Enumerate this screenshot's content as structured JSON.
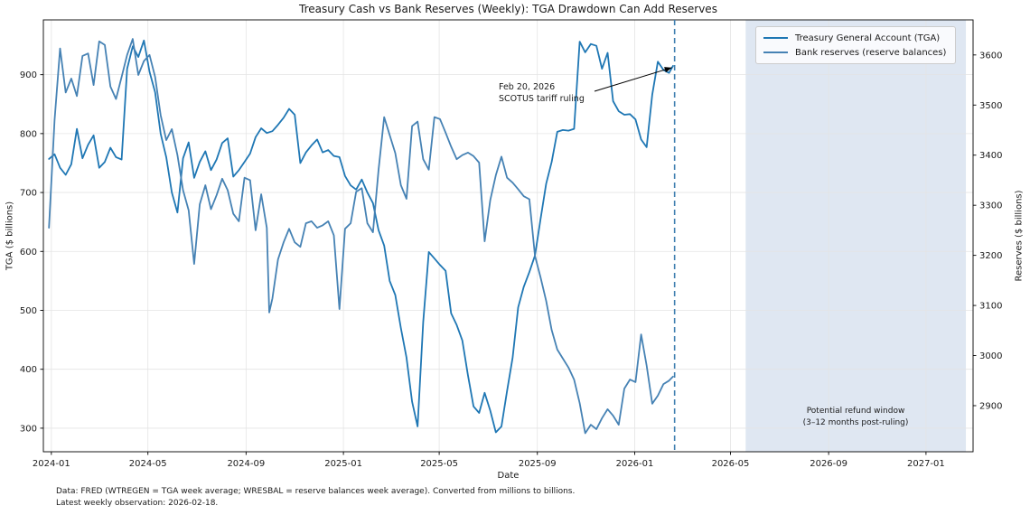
{
  "title": "Treasury Cash vs Bank Reserves (Weekly): TGA Drawdown Can Add Reserves",
  "axes": {
    "x_label": "Date",
    "y_left_label": "TGA ($ billions)",
    "y_right_label": "Reserves ($ billions)",
    "x_ticks": [
      {
        "label": "2024-01",
        "date": "2024-01-01"
      },
      {
        "label": "2024-05",
        "date": "2024-05-01"
      },
      {
        "label": "2024-09",
        "date": "2024-09-01"
      },
      {
        "label": "2025-01",
        "date": "2025-01-01"
      },
      {
        "label": "2025-05",
        "date": "2025-05-01"
      },
      {
        "label": "2025-09",
        "date": "2025-09-01"
      },
      {
        "label": "2026-01",
        "date": "2026-01-01"
      },
      {
        "label": "2026-05",
        "date": "2026-05-01"
      },
      {
        "label": "2026-09",
        "date": "2026-09-01"
      },
      {
        "label": "2027-01",
        "date": "2027-01-01"
      }
    ],
    "y_left_ticks": [
      300,
      400,
      500,
      600,
      700,
      800,
      900
    ],
    "y_right_ticks": [
      2900,
      3000,
      3100,
      3200,
      3300,
      3400,
      3500,
      3600
    ],
    "y_left_range": [
      260,
      993
    ],
    "y_right_range": [
      2808,
      3670
    ],
    "x_range": [
      "2023-12-22",
      "2027-03-01"
    ],
    "grid_color": "#e4e4e4"
  },
  "legend": {
    "items": [
      {
        "label": "Treasury General Account (TGA)",
        "color": "#1f77b4"
      },
      {
        "label": "Bank reserves (reserve balances)",
        "color": "#4682b4"
      }
    ]
  },
  "event_line": {
    "date": "2026-02-20",
    "color": "#3f7fb0"
  },
  "annotation": {
    "line1": "Feb 20, 2026",
    "line2": "SCOTUS tariff ruling",
    "arrow_tip_date": "2026-02-20",
    "arrow_tip_value_left": 912
  },
  "band": {
    "start": "2026-05-20",
    "end": "2027-02-20",
    "color": "rgba(176,196,222,0.4)",
    "label_line1": "Potential refund window",
    "label_line2": "(3–12 months post-ruling)"
  },
  "footnote_line1": "Data: FRED (WTREGEN = TGA week average; WRESBAL = reserve balances week average). Converted from millions to billions.",
  "footnote_line2": "Latest weekly observation: 2026-02-18.",
  "chart_data": {
    "type": "line",
    "title": "Treasury Cash vs Bank Reserves (Weekly): TGA Drawdown Can Add Reserves",
    "xlabel": "Date",
    "ylabel_left": "TGA ($ billions)",
    "ylabel_right": "Reserves ($ billions)",
    "legend_position": "upper right",
    "grid": true,
    "series": [
      {
        "name": "Treasury General Account (TGA)",
        "axis": "left",
        "color": "#1f77b4",
        "points": [
          [
            "2023-12-29",
            757
          ],
          [
            "2024-01-05",
            765
          ],
          [
            "2024-01-12",
            742
          ],
          [
            "2024-01-19",
            730
          ],
          [
            "2024-01-26",
            748
          ],
          [
            "2024-02-02",
            808
          ],
          [
            "2024-02-09",
            758
          ],
          [
            "2024-02-16",
            781
          ],
          [
            "2024-02-23",
            797
          ],
          [
            "2024-03-01",
            742
          ],
          [
            "2024-03-08",
            752
          ],
          [
            "2024-03-15",
            776
          ],
          [
            "2024-03-22",
            760
          ],
          [
            "2024-03-29",
            756
          ],
          [
            "2024-04-05",
            910
          ],
          [
            "2024-04-12",
            948
          ],
          [
            "2024-04-19",
            930
          ],
          [
            "2024-04-26",
            958
          ],
          [
            "2024-05-03",
            905
          ],
          [
            "2024-05-10",
            870
          ],
          [
            "2024-05-17",
            800
          ],
          [
            "2024-05-24",
            760
          ],
          [
            "2024-05-31",
            700
          ],
          [
            "2024-06-07",
            666
          ],
          [
            "2024-06-14",
            758
          ],
          [
            "2024-06-21",
            785
          ],
          [
            "2024-06-28",
            725
          ],
          [
            "2024-07-05",
            752
          ],
          [
            "2024-07-12",
            770
          ],
          [
            "2024-07-19",
            738
          ],
          [
            "2024-07-26",
            756
          ],
          [
            "2024-08-02",
            784
          ],
          [
            "2024-08-09",
            792
          ],
          [
            "2024-08-16",
            727
          ],
          [
            "2024-08-23",
            738
          ],
          [
            "2024-08-30",
            752
          ],
          [
            "2024-09-06",
            766
          ],
          [
            "2024-09-13",
            794
          ],
          [
            "2024-09-20",
            809
          ],
          [
            "2024-09-27",
            801
          ],
          [
            "2024-10-04",
            804
          ],
          [
            "2024-10-11",
            815
          ],
          [
            "2024-10-18",
            827
          ],
          [
            "2024-10-25",
            842
          ],
          [
            "2024-11-01",
            832
          ],
          [
            "2024-11-08",
            750
          ],
          [
            "2024-11-15",
            768
          ],
          [
            "2024-11-22",
            780
          ],
          [
            "2024-11-29",
            790
          ],
          [
            "2024-12-06",
            768
          ],
          [
            "2024-12-13",
            772
          ],
          [
            "2024-12-20",
            762
          ],
          [
            "2024-12-27",
            760
          ],
          [
            "2025-01-03",
            728
          ],
          [
            "2025-01-10",
            712
          ],
          [
            "2025-01-17",
            705
          ],
          [
            "2025-01-24",
            722
          ],
          [
            "2025-01-31",
            700
          ],
          [
            "2025-02-07",
            682
          ],
          [
            "2025-02-14",
            636
          ],
          [
            "2025-02-21",
            610
          ],
          [
            "2025-02-28",
            550
          ],
          [
            "2025-03-07",
            526
          ],
          [
            "2025-03-14",
            470
          ],
          [
            "2025-03-21",
            420
          ],
          [
            "2025-03-28",
            345
          ],
          [
            "2025-04-04",
            303
          ],
          [
            "2025-04-11",
            480
          ],
          [
            "2025-04-18",
            599
          ],
          [
            "2025-04-25",
            588
          ],
          [
            "2025-05-02",
            577
          ],
          [
            "2025-05-09",
            567
          ],
          [
            "2025-05-16",
            495
          ],
          [
            "2025-05-23",
            475
          ],
          [
            "2025-05-30",
            449
          ],
          [
            "2025-06-06",
            390
          ],
          [
            "2025-06-13",
            337
          ],
          [
            "2025-06-20",
            326
          ],
          [
            "2025-06-27",
            360
          ],
          [
            "2025-07-04",
            330
          ],
          [
            "2025-07-11",
            293
          ],
          [
            "2025-07-18",
            303
          ],
          [
            "2025-07-25",
            363
          ],
          [
            "2025-08-01",
            420
          ],
          [
            "2025-08-08",
            505
          ],
          [
            "2025-08-15",
            540
          ],
          [
            "2025-08-22",
            565
          ],
          [
            "2025-08-29",
            593
          ],
          [
            "2025-09-05",
            655
          ],
          [
            "2025-09-12",
            715
          ],
          [
            "2025-09-19",
            752
          ],
          [
            "2025-09-26",
            803
          ],
          [
            "2025-10-03",
            806
          ],
          [
            "2025-10-10",
            805
          ],
          [
            "2025-10-17",
            808
          ],
          [
            "2025-10-24",
            956
          ],
          [
            "2025-10-31",
            938
          ],
          [
            "2025-11-07",
            952
          ],
          [
            "2025-11-14",
            949
          ],
          [
            "2025-11-21",
            910
          ],
          [
            "2025-11-28",
            937
          ],
          [
            "2025-12-05",
            855
          ],
          [
            "2025-12-12",
            838
          ],
          [
            "2025-12-19",
            832
          ],
          [
            "2025-12-26",
            833
          ],
          [
            "2026-01-02",
            824
          ],
          [
            "2026-01-09",
            790
          ],
          [
            "2026-01-16",
            777
          ],
          [
            "2026-01-23",
            866
          ],
          [
            "2026-01-30",
            922
          ],
          [
            "2026-02-06",
            908
          ],
          [
            "2026-02-13",
            903
          ],
          [
            "2026-02-18",
            915
          ]
        ]
      },
      {
        "name": "Bank reserves (reserve balances)",
        "axis": "right",
        "color": "#4682b4",
        "points": [
          [
            "2023-12-29",
            3255
          ],
          [
            "2024-01-05",
            3470
          ],
          [
            "2024-01-12",
            3613
          ],
          [
            "2024-01-19",
            3525
          ],
          [
            "2024-01-26",
            3553
          ],
          [
            "2024-02-02",
            3518
          ],
          [
            "2024-02-09",
            3598
          ],
          [
            "2024-02-16",
            3603
          ],
          [
            "2024-02-23",
            3540
          ],
          [
            "2024-03-01",
            3627
          ],
          [
            "2024-03-08",
            3620
          ],
          [
            "2024-03-15",
            3537
          ],
          [
            "2024-03-22",
            3512
          ],
          [
            "2024-03-29",
            3556
          ],
          [
            "2024-04-05",
            3600
          ],
          [
            "2024-04-12",
            3632
          ],
          [
            "2024-04-19",
            3560
          ],
          [
            "2024-04-26",
            3588
          ],
          [
            "2024-05-03",
            3600
          ],
          [
            "2024-05-10",
            3556
          ],
          [
            "2024-05-17",
            3480
          ],
          [
            "2024-05-24",
            3430
          ],
          [
            "2024-05-31",
            3452
          ],
          [
            "2024-06-07",
            3400
          ],
          [
            "2024-06-14",
            3330
          ],
          [
            "2024-06-21",
            3290
          ],
          [
            "2024-06-28",
            3183
          ],
          [
            "2024-07-05",
            3302
          ],
          [
            "2024-07-12",
            3340
          ],
          [
            "2024-07-19",
            3292
          ],
          [
            "2024-07-26",
            3320
          ],
          [
            "2024-08-02",
            3353
          ],
          [
            "2024-08-09",
            3330
          ],
          [
            "2024-08-16",
            3283
          ],
          [
            "2024-08-23",
            3268
          ],
          [
            "2024-08-30",
            3355
          ],
          [
            "2024-09-06",
            3350
          ],
          [
            "2024-09-13",
            3250
          ],
          [
            "2024-09-20",
            3322
          ],
          [
            "2024-09-27",
            3255
          ],
          [
            "2024-09-30",
            3086
          ],
          [
            "2024-10-04",
            3114
          ],
          [
            "2024-10-11",
            3192
          ],
          [
            "2024-10-18",
            3226
          ],
          [
            "2024-10-25",
            3253
          ],
          [
            "2024-11-01",
            3226
          ],
          [
            "2024-11-08",
            3217
          ],
          [
            "2024-11-15",
            3264
          ],
          [
            "2024-11-22",
            3268
          ],
          [
            "2024-11-29",
            3255
          ],
          [
            "2024-12-06",
            3260
          ],
          [
            "2024-12-13",
            3268
          ],
          [
            "2024-12-20",
            3240
          ],
          [
            "2024-12-27",
            3093
          ],
          [
            "2025-01-03",
            3253
          ],
          [
            "2025-01-10",
            3264
          ],
          [
            "2025-01-17",
            3327
          ],
          [
            "2025-01-24",
            3334
          ],
          [
            "2025-01-31",
            3264
          ],
          [
            "2025-02-07",
            3246
          ],
          [
            "2025-02-14",
            3371
          ],
          [
            "2025-02-21",
            3476
          ],
          [
            "2025-02-28",
            3440
          ],
          [
            "2025-03-07",
            3404
          ],
          [
            "2025-03-14",
            3340
          ],
          [
            "2025-03-21",
            3313
          ],
          [
            "2025-03-28",
            3458
          ],
          [
            "2025-04-04",
            3467
          ],
          [
            "2025-04-11",
            3392
          ],
          [
            "2025-04-18",
            3371
          ],
          [
            "2025-04-25",
            3476
          ],
          [
            "2025-05-02",
            3472
          ],
          [
            "2025-05-09",
            3445
          ],
          [
            "2025-05-16",
            3417
          ],
          [
            "2025-05-23",
            3392
          ],
          [
            "2025-05-30",
            3400
          ],
          [
            "2025-06-06",
            3405
          ],
          [
            "2025-06-13",
            3398
          ],
          [
            "2025-06-20",
            3385
          ],
          [
            "2025-06-27",
            3228
          ],
          [
            "2025-07-04",
            3310
          ],
          [
            "2025-07-11",
            3360
          ],
          [
            "2025-07-18",
            3397
          ],
          [
            "2025-07-25",
            3355
          ],
          [
            "2025-08-01",
            3345
          ],
          [
            "2025-08-08",
            3332
          ],
          [
            "2025-08-15",
            3318
          ],
          [
            "2025-08-22",
            3312
          ],
          [
            "2025-08-29",
            3199
          ],
          [
            "2025-09-05",
            3156
          ],
          [
            "2025-09-12",
            3109
          ],
          [
            "2025-09-19",
            3051
          ],
          [
            "2025-09-26",
            3012
          ],
          [
            "2025-10-03",
            2994
          ],
          [
            "2025-10-10",
            2976
          ],
          [
            "2025-10-17",
            2952
          ],
          [
            "2025-10-24",
            2905
          ],
          [
            "2025-10-31",
            2845
          ],
          [
            "2025-11-07",
            2862
          ],
          [
            "2025-11-14",
            2853
          ],
          [
            "2025-11-21",
            2875
          ],
          [
            "2025-11-28",
            2893
          ],
          [
            "2025-12-05",
            2880
          ],
          [
            "2025-12-12",
            2862
          ],
          [
            "2025-12-19",
            2934
          ],
          [
            "2025-12-26",
            2952
          ],
          [
            "2026-01-02",
            2947
          ],
          [
            "2026-01-09",
            3042
          ],
          [
            "2026-01-16",
            2980
          ],
          [
            "2026-01-23",
            2904
          ],
          [
            "2026-01-30",
            2920
          ],
          [
            "2026-02-06",
            2943
          ],
          [
            "2026-02-13",
            2950
          ],
          [
            "2026-02-18",
            2958
          ]
        ]
      }
    ]
  }
}
